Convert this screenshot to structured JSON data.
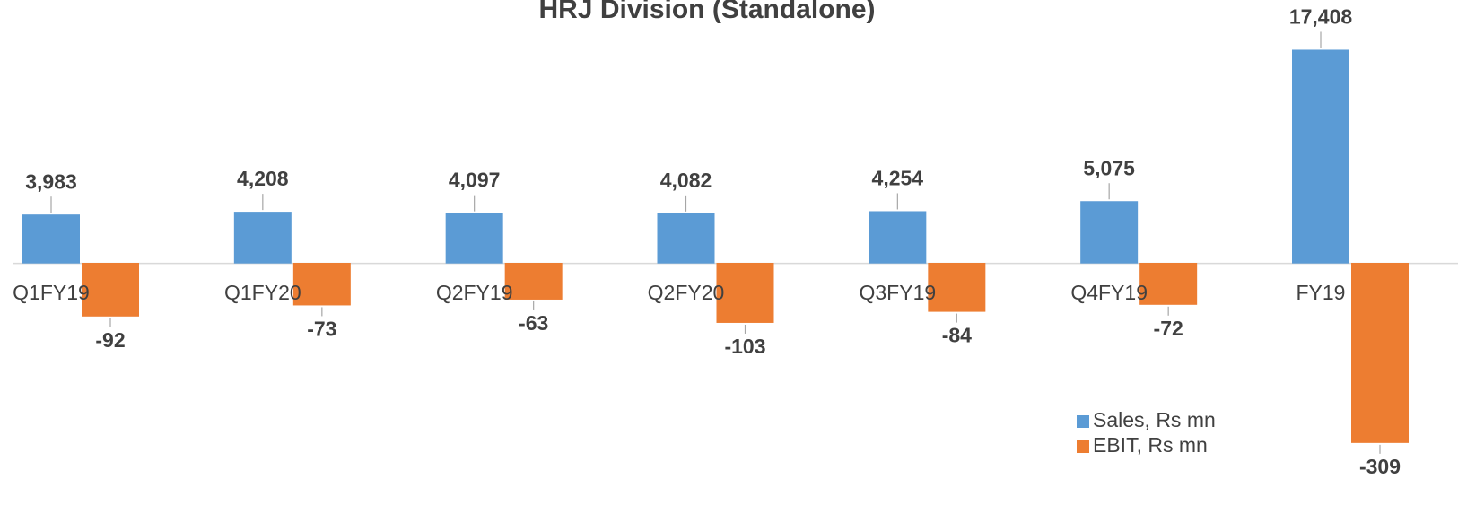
{
  "chart_data": {
    "type": "bar",
    "title": "HRJ Division (Standalone)",
    "categories": [
      "Q1FY19",
      "Q1FY20",
      "Q2FY19",
      "Q2FY20",
      "Q3FY19",
      "Q4FY19",
      "FY19"
    ],
    "series": [
      {
        "name": "Sales, Rs mn",
        "color": "#5b9bd5",
        "values": [
          3983,
          4208,
          4097,
          4082,
          4254,
          5075,
          17408
        ],
        "value_labels": [
          "3,983",
          "4,208",
          "4,097",
          "4,082",
          "4,254",
          "5,075",
          "17,408"
        ]
      },
      {
        "name": "EBIT, Rs mn",
        "color": "#ed7d31",
        "axis": "y2",
        "values": [
          -92,
          -73,
          -63,
          -103,
          -84,
          -72,
          -309
        ],
        "value_labels": [
          "-92",
          "-73",
          "-63",
          "-103",
          "-84",
          "-72",
          "-309"
        ]
      }
    ],
    "ylim": [
      -18000,
      20000
    ],
    "y2lim": [
      -380,
      420
    ],
    "grid": false,
    "legend": "lower right"
  }
}
